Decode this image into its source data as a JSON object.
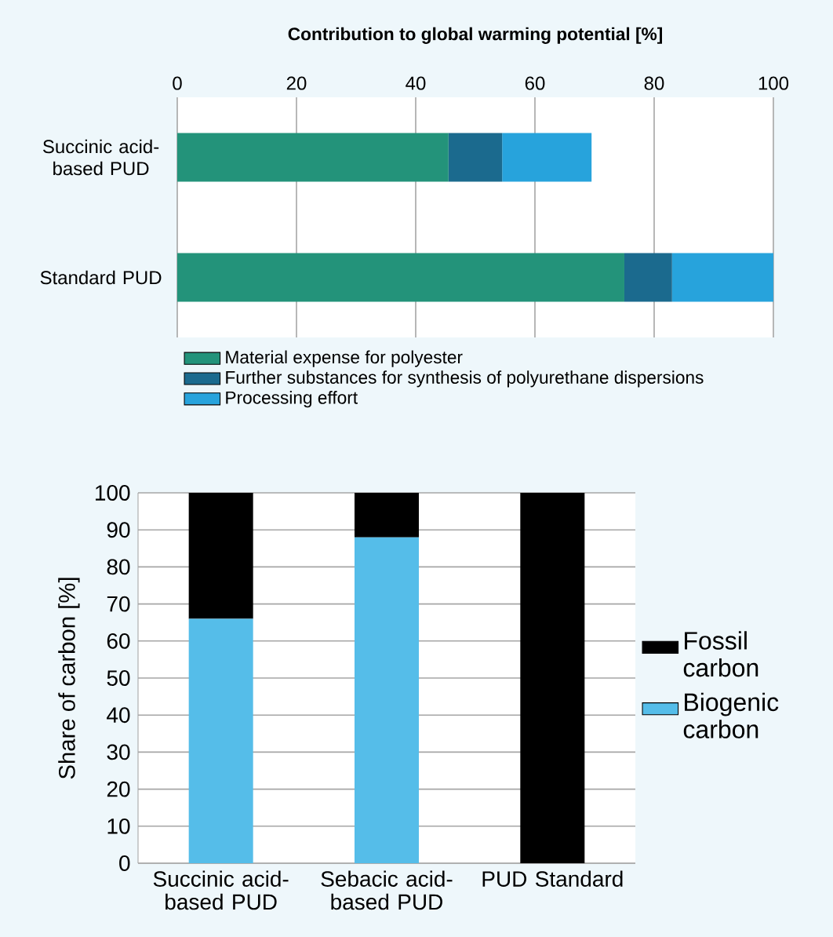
{
  "chart_data": [
    {
      "type": "bar",
      "orientation": "horizontal",
      "stacked": true,
      "title": "Contribution to global warming potential [%]",
      "categories": [
        "Succinic acid-based PUD",
        "Standard PUD"
      ],
      "series": [
        {
          "name": "Material expense for polyester",
          "color": "#23937a",
          "values": [
            45.5,
            75
          ]
        },
        {
          "name": "Further substances for synthesis of polyurethane dispersions",
          "color": "#1b6a8e",
          "values": [
            9,
            8
          ]
        },
        {
          "name": "Processing effort",
          "color": "#27a3dc",
          "values": [
            15,
            17
          ]
        }
      ],
      "xlim": [
        0,
        100
      ],
      "xticks": [
        0,
        20,
        40,
        60,
        80,
        100
      ],
      "grid": "x",
      "legend": "bottom"
    },
    {
      "type": "bar",
      "stacked": true,
      "ylabel": "Share of carbon [%]",
      "categories": [
        "Succinic acid-based PUD",
        "Sebacic acid-based PUD",
        "PUD Standard"
      ],
      "series": [
        {
          "name": "Biogenic carbon",
          "color": "#55bde9",
          "values": [
            66,
            88,
            0
          ]
        },
        {
          "name": "Fossil carbon",
          "color": "#000000",
          "values": [
            34,
            12,
            100
          ]
        }
      ],
      "ylim": [
        0,
        100
      ],
      "yticks": [
        0,
        10,
        20,
        30,
        40,
        50,
        60,
        70,
        80,
        90,
        100
      ],
      "grid": "y",
      "legend": "right"
    }
  ]
}
